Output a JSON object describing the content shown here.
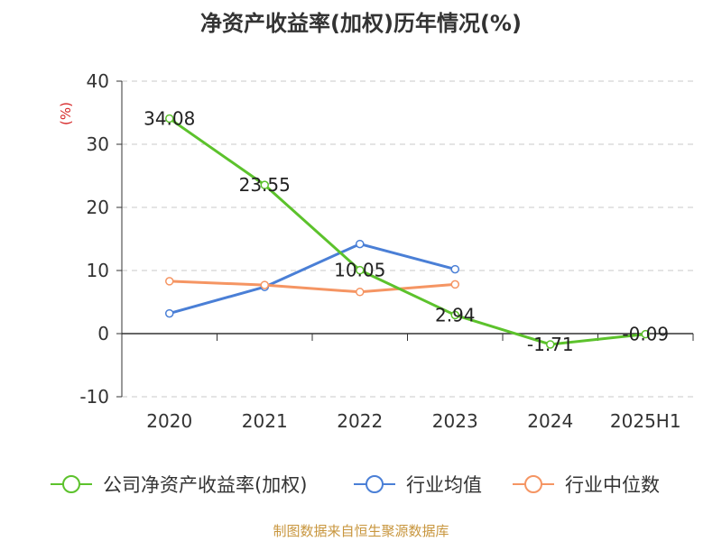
{
  "chart_data": {
    "type": "line",
    "title": "净资产收益率(加权)历年情况(%)",
    "ylabel": "(%)",
    "categories": [
      "2020",
      "2021",
      "2022",
      "2023",
      "2024",
      "2025H1"
    ],
    "ylim": [
      -10,
      40
    ],
    "yticks": [
      -10,
      0,
      10,
      20,
      30,
      40
    ],
    "grid": true,
    "legend_position": "bottom",
    "series": [
      {
        "name": "公司净资产收益率(加权)",
        "color": "#5cc22c",
        "values": [
          34.08,
          23.55,
          10.05,
          2.94,
          -1.71,
          -0.09
        ],
        "labels": [
          "34.08",
          "23.55",
          "10.05",
          "2.94",
          "-1.71",
          "-0.09"
        ]
      },
      {
        "name": "行业均值",
        "color": "#4a7fd6",
        "values": [
          3.2,
          7.4,
          14.2,
          10.2,
          null,
          null
        ]
      },
      {
        "name": "行业中位数",
        "color": "#f59563",
        "values": [
          8.3,
          7.7,
          6.6,
          7.8,
          null,
          null
        ]
      }
    ]
  },
  "source": "制图数据来自恒生聚源数据库"
}
